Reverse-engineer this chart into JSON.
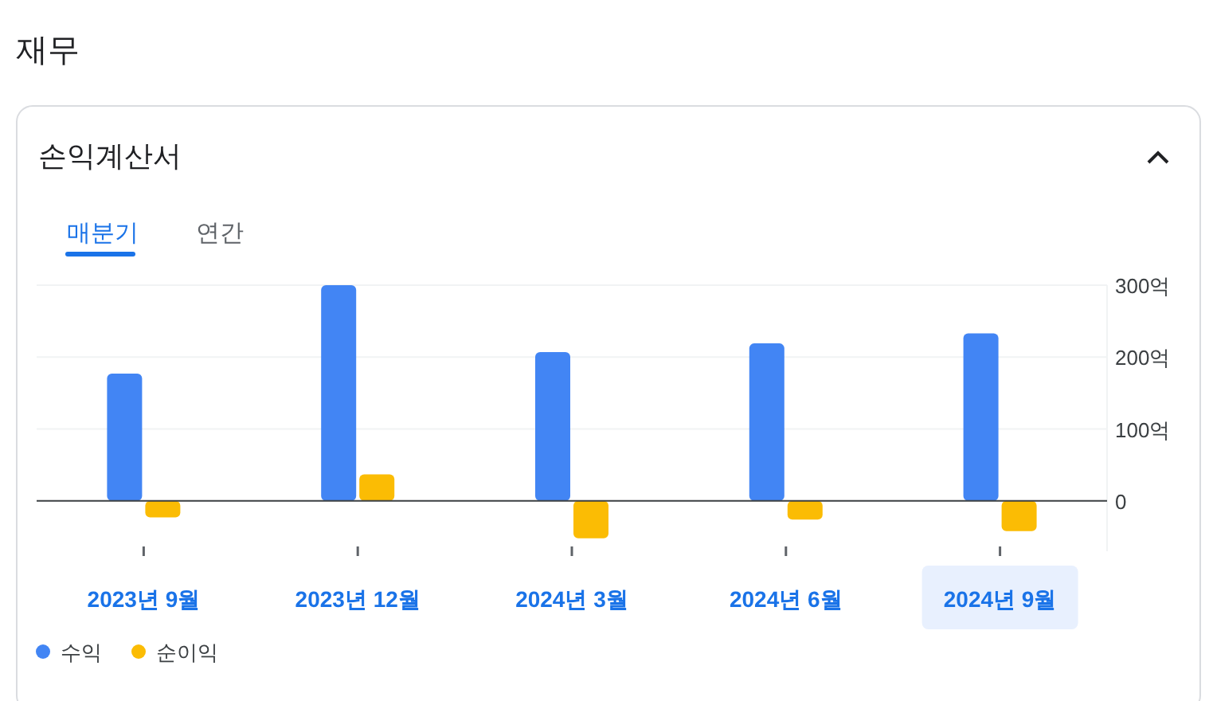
{
  "chart_data": {
    "type": "bar",
    "title": "재무",
    "subtitle": "손익계산서",
    "annotations": [
      "매분기",
      "연간"
    ],
    "categories": [
      "2023년 9월",
      "2023년 12월",
      "2024년 3월",
      "2024년 6월",
      "2024년 9월"
    ],
    "series": [
      {
        "name": "수익",
        "color": "#4285f4",
        "values": [
          177,
          300,
          207,
          219,
          233
        ]
      },
      {
        "name": "순이익",
        "color": "#fbbc04",
        "values": [
          -23,
          37,
          -52,
          -26,
          -42
        ]
      }
    ],
    "ylim": [
      -70,
      300
    ],
    "yticks": [
      0,
      {
        "value": 100,
        "label": "100억"
      },
      {
        "value": 200,
        "label": "200억"
      },
      {
        "value": 300,
        "label": "300억"
      }
    ],
    "grid": "y",
    "legend": "bottom left"
  }
}
